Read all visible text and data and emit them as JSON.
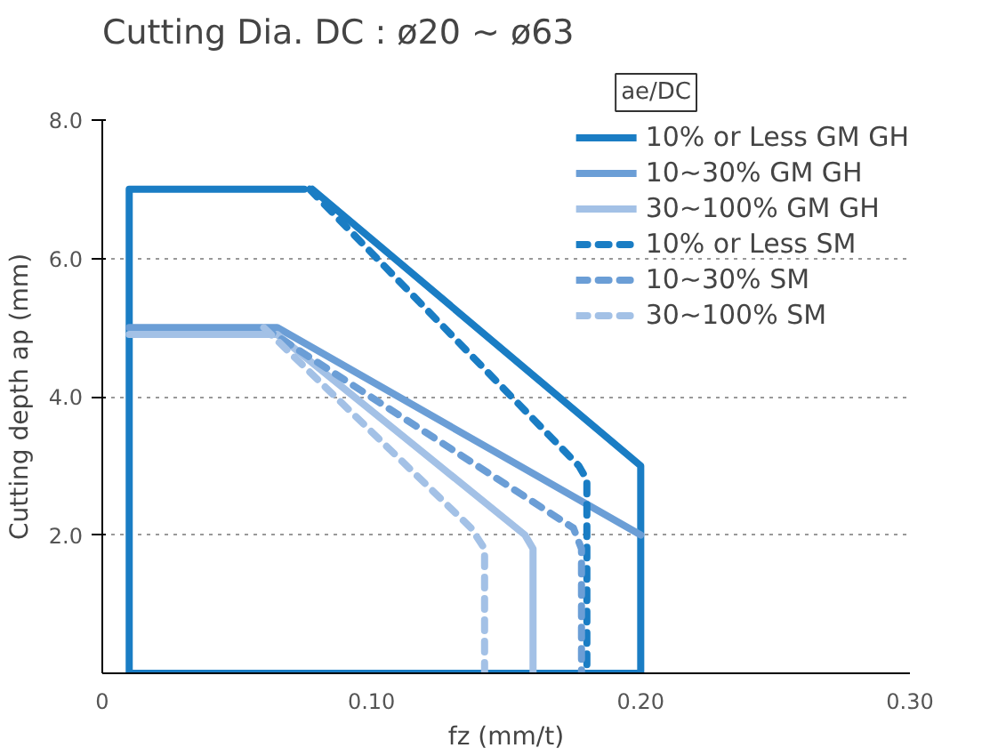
{
  "chart_data": {
    "type": "line",
    "title": "Cutting Dia. DC : ø20 ~ ø63",
    "xlabel": "fz (mm/t)",
    "ylabel": "Cutting depth ap (mm)",
    "annotations": [
      "ae/DC"
    ],
    "xlim": [
      0,
      0.3
    ],
    "ylim": [
      0,
      8.0
    ],
    "xticks": [
      0,
      {
        "value": 0.1,
        "label": "0.10"
      },
      {
        "value": 0.2,
        "label": "0.20"
      },
      {
        "value": 0.3,
        "label": "0.30"
      }
    ],
    "yticks": [
      {
        "value": 2,
        "label": "2.0"
      },
      {
        "value": 4,
        "label": "4.0"
      },
      {
        "value": 6,
        "label": "6.0"
      },
      {
        "value": 8,
        "label": "8.0"
      }
    ],
    "grid": "y",
    "legend": "top right",
    "marker": "none",
    "series": [
      {
        "name": "10% or Less GM GH",
        "color": "#1a7dc4",
        "line_style": "solid",
        "x": [
          0.078,
          0.2,
          0.2,
          0.01,
          0.01,
          0.075
        ],
        "values": [
          7.0,
          3.0,
          0,
          0,
          7.0,
          7.0
        ]
      },
      {
        "name": "10~30% GM GH",
        "color": "#6b9ed6",
        "line_style": "solid",
        "x": [
          0.01,
          0.065,
          0.2
        ],
        "values": [
          5.0,
          5.0,
          2.0
        ]
      },
      {
        "name": "30~100% GM GH",
        "color": "#a3c1e6",
        "line_style": "solid",
        "x": [
          0.01,
          0.065,
          0.157,
          0.16,
          0.16
        ],
        "values": [
          4.9,
          4.9,
          2.0,
          1.8,
          0
        ]
      },
      {
        "name": "10% or Less SM",
        "color": "#1a7dc4",
        "line_style": "dashed",
        "x": [
          0.077,
          0.177,
          0.18,
          0.18
        ],
        "values": [
          7.0,
          3.0,
          2.8,
          0
        ]
      },
      {
        "name": "10~30% SM",
        "color": "#6b9ed6",
        "line_style": "dashed",
        "x": [
          0.06,
          0.175,
          0.178,
          0.178
        ],
        "values": [
          5.0,
          2.1,
          1.8,
          0
        ]
      },
      {
        "name": "30~100% SM",
        "color": "#a3c1e6",
        "line_style": "dashed",
        "x": [
          0.06,
          0.137,
          0.142,
          0.142
        ],
        "values": [
          5.0,
          2.1,
          1.8,
          0
        ]
      }
    ]
  }
}
